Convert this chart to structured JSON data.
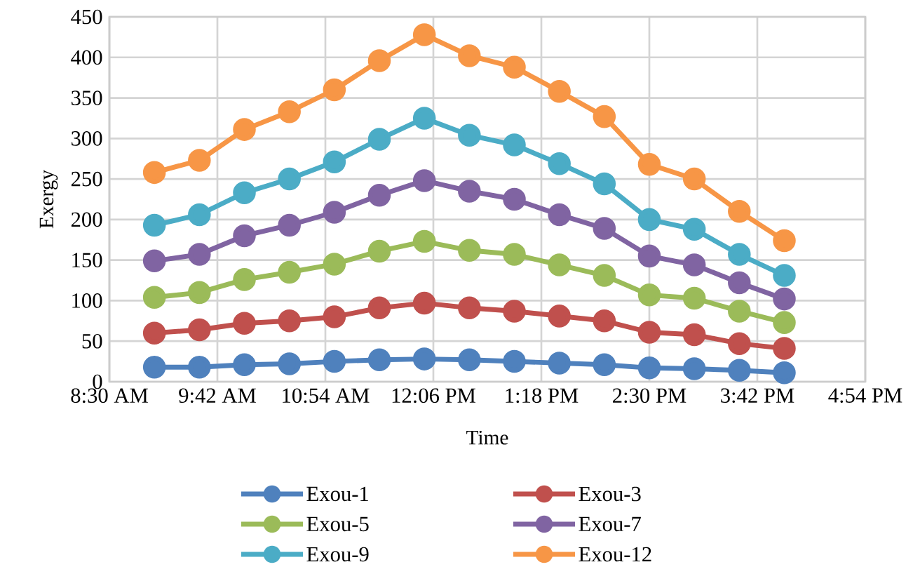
{
  "chart_data": {
    "type": "line",
    "xlabel": "Time",
    "ylabel": "Exergy",
    "x": [
      9,
      9.5,
      10,
      10.5,
      11,
      11.5,
      12,
      12.5,
      13,
      13.5,
      14,
      14.5,
      15,
      15.5,
      16
    ],
    "xlim": [
      8.5,
      16.9
    ],
    "xticks": [
      {
        "value": 8.5,
        "label": "8:30 AM"
      },
      {
        "value": 9.7,
        "label": "9:42 AM"
      },
      {
        "value": 10.9,
        "label": "10:54 AM"
      },
      {
        "value": 12.1,
        "label": "12:06 PM"
      },
      {
        "value": 13.3,
        "label": "1:18 PM"
      },
      {
        "value": 14.5,
        "label": "2:30 PM"
      },
      {
        "value": 15.7,
        "label": "3:42 PM"
      },
      {
        "value": 16.9,
        "label": "4:54 PM"
      }
    ],
    "ylim": [
      0,
      450
    ],
    "yticks": [
      0,
      50,
      100,
      150,
      200,
      250,
      300,
      350,
      400,
      450
    ],
    "grid": true,
    "legend": "bottom",
    "marker": "circle",
    "line_style": "solid",
    "series": [
      {
        "name": "Exou-1",
        "color": "#4f81bd",
        "values": [
          18,
          18,
          21,
          22,
          25,
          27,
          28,
          27,
          25,
          23,
          21,
          17,
          16,
          14,
          11
        ]
      },
      {
        "name": "Exou-3",
        "color": "#c0504d",
        "values": [
          60,
          64,
          72,
          75,
          80,
          91,
          97,
          91,
          87,
          81,
          75,
          61,
          58,
          47,
          41
        ]
      },
      {
        "name": "Exou-5",
        "color": "#9bbb59",
        "values": [
          104,
          110,
          126,
          135,
          145,
          161,
          173,
          162,
          157,
          144,
          131,
          107,
          103,
          87,
          73
        ]
      },
      {
        "name": "Exou-7",
        "color": "#8064a2",
        "values": [
          149,
          157,
          180,
          193,
          209,
          230,
          248,
          235,
          225,
          206,
          189,
          155,
          144,
          122,
          102
        ]
      },
      {
        "name": "Exou-9",
        "color": "#4bacc6",
        "values": [
          193,
          206,
          233,
          250,
          271,
          299,
          325,
          304,
          292,
          269,
          244,
          200,
          188,
          157,
          131
        ]
      },
      {
        "name": "Exou-12",
        "color": "#f79646",
        "values": [
          258,
          273,
          311,
          333,
          360,
          396,
          428,
          402,
          388,
          358,
          327,
          268,
          250,
          210,
          174
        ]
      }
    ]
  }
}
